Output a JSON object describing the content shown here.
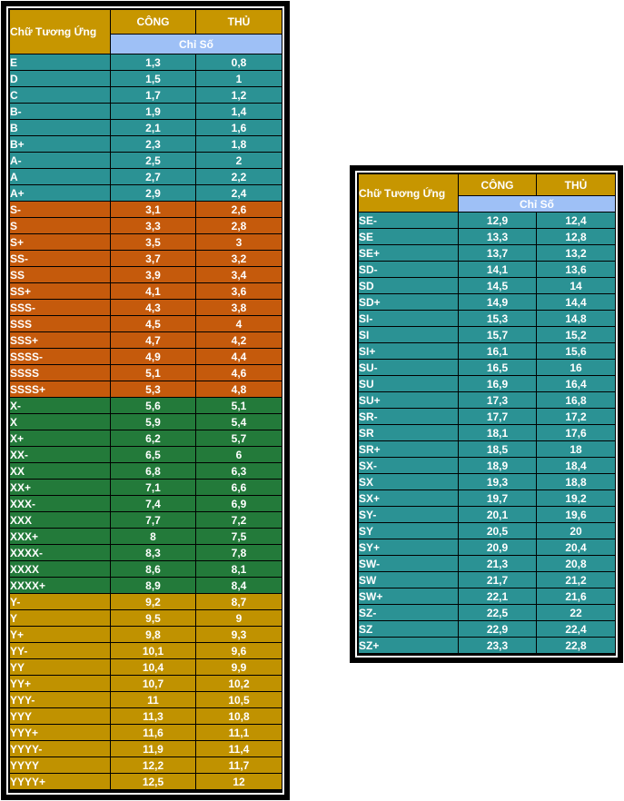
{
  "colors": {
    "teal": "#2b9294",
    "orange": "#c55a0c",
    "green": "#237a3a",
    "gold": "#c09200",
    "header_gold": "#c79600",
    "header_blue": "#9ec0f6"
  },
  "left_table": {
    "title": "Chữ Tương Ứng",
    "col_attack": "CÔNG",
    "col_defense": "THỦ",
    "subheader": "Chỉ Số",
    "rows": [
      {
        "grade": "E",
        "attack": "1,3",
        "defense": "0,8",
        "color": "teal"
      },
      {
        "grade": "D",
        "attack": "1,5",
        "defense": "1",
        "color": "teal"
      },
      {
        "grade": "C",
        "attack": "1,7",
        "defense": "1,2",
        "color": "teal"
      },
      {
        "grade": "B-",
        "attack": "1,9",
        "defense": "1,4",
        "color": "teal"
      },
      {
        "grade": "B",
        "attack": "2,1",
        "defense": "1,6",
        "color": "teal"
      },
      {
        "grade": "B+",
        "attack": "2,3",
        "defense": "1,8",
        "color": "teal"
      },
      {
        "grade": "A-",
        "attack": "2,5",
        "defense": "2",
        "color": "teal"
      },
      {
        "grade": "A",
        "attack": "2,7",
        "defense": "2,2",
        "color": "teal"
      },
      {
        "grade": "A+",
        "attack": "2,9",
        "defense": "2,4",
        "color": "teal"
      },
      {
        "grade": "S-",
        "attack": "3,1",
        "defense": "2,6",
        "color": "orange"
      },
      {
        "grade": "S",
        "attack": "3,3",
        "defense": "2,8",
        "color": "orange"
      },
      {
        "grade": "S+",
        "attack": "3,5",
        "defense": "3",
        "color": "orange"
      },
      {
        "grade": "SS-",
        "attack": "3,7",
        "defense": "3,2",
        "color": "orange"
      },
      {
        "grade": "SS",
        "attack": "3,9",
        "defense": "3,4",
        "color": "orange"
      },
      {
        "grade": "SS+",
        "attack": "4,1",
        "defense": "3,6",
        "color": "orange"
      },
      {
        "grade": "SSS-",
        "attack": "4,3",
        "defense": "3,8",
        "color": "orange"
      },
      {
        "grade": "SSS",
        "attack": "4,5",
        "defense": "4",
        "color": "orange"
      },
      {
        "grade": "SSS+",
        "attack": "4,7",
        "defense": "4,2",
        "color": "orange"
      },
      {
        "grade": "SSSS-",
        "attack": "4,9",
        "defense": "4,4",
        "color": "orange"
      },
      {
        "grade": "SSSS",
        "attack": "5,1",
        "defense": "4,6",
        "color": "orange"
      },
      {
        "grade": "SSSS+",
        "attack": "5,3",
        "defense": "4,8",
        "color": "orange"
      },
      {
        "grade": "X-",
        "attack": "5,6",
        "defense": "5,1",
        "color": "green"
      },
      {
        "grade": "X",
        "attack": "5,9",
        "defense": "5,4",
        "color": "green"
      },
      {
        "grade": "X+",
        "attack": "6,2",
        "defense": "5,7",
        "color": "green"
      },
      {
        "grade": "XX-",
        "attack": "6,5",
        "defense": "6",
        "color": "green"
      },
      {
        "grade": "XX",
        "attack": "6,8",
        "defense": "6,3",
        "color": "green"
      },
      {
        "grade": "XX+",
        "attack": "7,1",
        "defense": "6,6",
        "color": "green"
      },
      {
        "grade": "XXX-",
        "attack": "7,4",
        "defense": "6,9",
        "color": "green"
      },
      {
        "grade": "XXX",
        "attack": "7,7",
        "defense": "7,2",
        "color": "green"
      },
      {
        "grade": "XXX+",
        "attack": "8",
        "defense": "7,5",
        "color": "green"
      },
      {
        "grade": "XXXX-",
        "attack": "8,3",
        "defense": "7,8",
        "color": "green"
      },
      {
        "grade": "XXXX",
        "attack": "8,6",
        "defense": "8,1",
        "color": "green"
      },
      {
        "grade": "XXXX+",
        "attack": "8,9",
        "defense": "8,4",
        "color": "green"
      },
      {
        "grade": "Y-",
        "attack": "9,2",
        "defense": "8,7",
        "color": "gold"
      },
      {
        "grade": "Y",
        "attack": "9,5",
        "defense": "9",
        "color": "gold"
      },
      {
        "grade": "Y+",
        "attack": "9,8",
        "defense": "9,3",
        "color": "gold"
      },
      {
        "grade": "YY-",
        "attack": "10,1",
        "defense": "9,6",
        "color": "gold"
      },
      {
        "grade": "YY",
        "attack": "10,4",
        "defense": "9,9",
        "color": "gold"
      },
      {
        "grade": "YY+",
        "attack": "10,7",
        "defense": "10,2",
        "color": "gold"
      },
      {
        "grade": "YYY-",
        "attack": "11",
        "defense": "10,5",
        "color": "gold"
      },
      {
        "grade": "YYY",
        "attack": "11,3",
        "defense": "10,8",
        "color": "gold"
      },
      {
        "grade": "YYY+",
        "attack": "11,6",
        "defense": "11,1",
        "color": "gold"
      },
      {
        "grade": "YYYY-",
        "attack": "11,9",
        "defense": "11,4",
        "color": "gold"
      },
      {
        "grade": "YYYY",
        "attack": "12,2",
        "defense": "11,7",
        "color": "gold"
      },
      {
        "grade": "YYYY+",
        "attack": "12,5",
        "defense": "12",
        "color": "gold"
      }
    ]
  },
  "right_table": {
    "title": "Chữ Tương Ứng",
    "col_attack": "CÔNG",
    "col_defense": "THỦ",
    "subheader": "Chỉ Số",
    "rows": [
      {
        "grade": "SE-",
        "attack": "12,9",
        "defense": "12,4",
        "color": "teal"
      },
      {
        "grade": "SE",
        "attack": "13,3",
        "defense": "12,8",
        "color": "teal"
      },
      {
        "grade": "SE+",
        "attack": "13,7",
        "defense": "13,2",
        "color": "teal"
      },
      {
        "grade": "SD-",
        "attack": "14,1",
        "defense": "13,6",
        "color": "teal"
      },
      {
        "grade": "SD",
        "attack": "14,5",
        "defense": "14",
        "color": "teal"
      },
      {
        "grade": "SD+",
        "attack": "14,9",
        "defense": "14,4",
        "color": "teal"
      },
      {
        "grade": "SI-",
        "attack": "15,3",
        "defense": "14,8",
        "color": "teal"
      },
      {
        "grade": "SI",
        "attack": "15,7",
        "defense": "15,2",
        "color": "teal"
      },
      {
        "grade": "SI+",
        "attack": "16,1",
        "defense": "15,6",
        "color": "teal"
      },
      {
        "grade": "SU-",
        "attack": "16,5",
        "defense": "16",
        "color": "teal"
      },
      {
        "grade": "SU",
        "attack": "16,9",
        "defense": "16,4",
        "color": "teal"
      },
      {
        "grade": "SU+",
        "attack": "17,3",
        "defense": "16,8",
        "color": "teal"
      },
      {
        "grade": "SR-",
        "attack": "17,7",
        "defense": "17,2",
        "color": "teal"
      },
      {
        "grade": "SR",
        "attack": "18,1",
        "defense": "17,6",
        "color": "teal"
      },
      {
        "grade": "SR+",
        "attack": "18,5",
        "defense": "18",
        "color": "teal"
      },
      {
        "grade": "SX-",
        "attack": "18,9",
        "defense": "18,4",
        "color": "teal"
      },
      {
        "grade": "SX",
        "attack": "19,3",
        "defense": "18,8",
        "color": "teal"
      },
      {
        "grade": "SX+",
        "attack": "19,7",
        "defense": "19,2",
        "color": "teal"
      },
      {
        "grade": "SY-",
        "attack": "20,1",
        "defense": "19,6",
        "color": "teal"
      },
      {
        "grade": "SY",
        "attack": "20,5",
        "defense": "20",
        "color": "teal"
      },
      {
        "grade": "SY+",
        "attack": "20,9",
        "defense": "20,4",
        "color": "teal"
      },
      {
        "grade": "SW-",
        "attack": "21,3",
        "defense": "20,8",
        "color": "teal"
      },
      {
        "grade": "SW",
        "attack": "21,7",
        "defense": "21,2",
        "color": "teal"
      },
      {
        "grade": "SW+",
        "attack": "22,1",
        "defense": "21,6",
        "color": "teal"
      },
      {
        "grade": "SZ-",
        "attack": "22,5",
        "defense": "22",
        "color": "teal"
      },
      {
        "grade": "SZ",
        "attack": "22,9",
        "defense": "22,4",
        "color": "teal"
      },
      {
        "grade": "SZ+",
        "attack": "23,3",
        "defense": "22,8",
        "color": "teal"
      }
    ]
  }
}
